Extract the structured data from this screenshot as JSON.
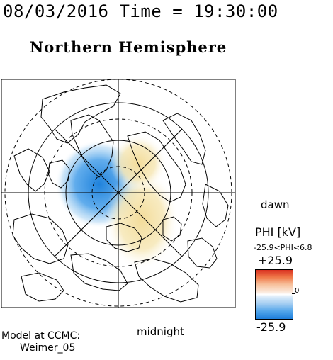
{
  "header": "08/03/2016 Time = 19:30:00",
  "title": "Northern Hemisphere",
  "labels": {
    "dawn": "dawn",
    "midnight": "midnight",
    "model_line1": "Model at CCMC:",
    "model_line2": "Weimer_05"
  },
  "legend": {
    "title": "PHI [kV]",
    "range_text": "-25.9<PHI<6.8",
    "max_label": "+25.9",
    "min_label": "-25.9",
    "zero_label": "0",
    "colors": {
      "positive": "#d9301f",
      "zero": "#ffffff",
      "negative": "#1f7fdc"
    }
  },
  "map_content": {
    "projection": "polar",
    "hemisphere": "northern",
    "overlays": [
      "coastlines",
      "latitude-circles",
      "meridians"
    ],
    "potential_cells": [
      {
        "sign": "negative",
        "color": "#3f95e6"
      },
      {
        "sign": "positive",
        "color": "#f2e3a3"
      }
    ]
  }
}
